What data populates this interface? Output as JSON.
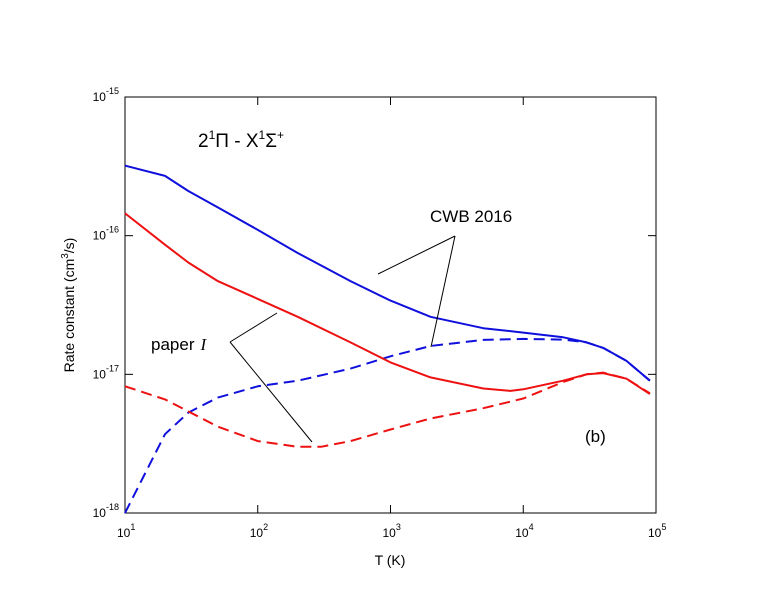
{
  "chart_data": {
    "type": "line",
    "title": "2¹Π - X¹Σ⁺",
    "title_parts": {
      "n1": "2",
      "s1": "1",
      "m1": "Π - X",
      "s2": "1",
      "m2": "Σ",
      "s3": "+"
    },
    "xlabel": "T (K)",
    "ylabel_parts": {
      "pre": "Rate constant (cm",
      "sup": "3",
      "post": "/s)"
    },
    "xscale": "log",
    "yscale": "log",
    "xlim": [
      10,
      100000
    ],
    "ylim": [
      1e-18,
      1e-15
    ],
    "x_ticks": [
      {
        "base": "10",
        "exp": "1"
      },
      {
        "base": "10",
        "exp": "2"
      },
      {
        "base": "10",
        "exp": "3"
      },
      {
        "base": "10",
        "exp": "4"
      },
      {
        "base": "10",
        "exp": "5"
      }
    ],
    "y_ticks": [
      {
        "base": "10",
        "exp": "-18"
      },
      {
        "base": "10",
        "exp": "-17"
      },
      {
        "base": "10",
        "exp": "-16"
      },
      {
        "base": "10",
        "exp": "-15"
      }
    ],
    "annotations": {
      "cwb": "CWB 2016",
      "paper_text": "paper",
      "paper_numeral": "I",
      "panel": "(b)"
    },
    "grid": false,
    "series": [
      {
        "name": "CWB 2016 (solid)",
        "color": "#1010dd",
        "dash": "solid",
        "x": [
          10,
          20,
          30,
          50,
          100,
          200,
          500,
          1000,
          2000,
          5000,
          10000,
          20000,
          30000,
          40000,
          60000,
          90000
        ],
        "y": [
          3.2e-16,
          2.7e-16,
          2.1e-16,
          1.6e-16,
          1.1e-16,
          7.5e-17,
          4.7e-17,
          3.4e-17,
          2.6e-17,
          2.15e-17,
          2e-17,
          1.85e-17,
          1.7e-17,
          1.55e-17,
          1.25e-17,
          9e-18
        ]
      },
      {
        "name": "CWB 2016 (dashed)",
        "color": "#1010dd",
        "dash": "dashed",
        "x": [
          10,
          20,
          30,
          50,
          100,
          200,
          500,
          1000,
          2000,
          5000,
          10000,
          20000,
          30000,
          40000,
          60000,
          90000
        ],
        "y": [
          1e-18,
          3.7e-18,
          5.3e-18,
          6.8e-18,
          8.2e-18,
          9e-18,
          1.1e-17,
          1.35e-17,
          1.6e-17,
          1.77e-17,
          1.8e-17,
          1.78e-17,
          1.7e-17,
          1.55e-17,
          1.25e-17,
          9e-18
        ]
      },
      {
        "name": "paper I (solid)",
        "color": "#ee1111",
        "dash": "solid",
        "x": [
          10,
          20,
          30,
          50,
          100,
          200,
          500,
          1000,
          2000,
          5000,
          8000,
          10000,
          20000,
          30000,
          40000,
          60000,
          90000
        ],
        "y": [
          1.45e-16,
          8.6e-17,
          6.4e-17,
          4.7e-17,
          3.5e-17,
          2.6e-17,
          1.7e-17,
          1.22e-17,
          9.5e-18,
          7.9e-18,
          7.6e-18,
          7.8e-18,
          9e-18,
          1e-17,
          1.02e-17,
          9.3e-18,
          7.2e-18
        ]
      },
      {
        "name": "paper I (dashed)",
        "color": "#ee1111",
        "dash": "dashed",
        "x": [
          10,
          20,
          50,
          100,
          200,
          300,
          500,
          1000,
          2000,
          5000,
          10000,
          20000,
          30000,
          40000,
          60000,
          90000
        ],
        "y": [
          8.2e-18,
          6.6e-18,
          4.2e-18,
          3.3e-18,
          3e-18,
          3e-18,
          3.3e-18,
          4e-18,
          4.8e-18,
          5.7e-18,
          6.7e-18,
          8.8e-18,
          1e-17,
          1.03e-17,
          9.3e-18,
          7.3e-18
        ]
      }
    ]
  }
}
